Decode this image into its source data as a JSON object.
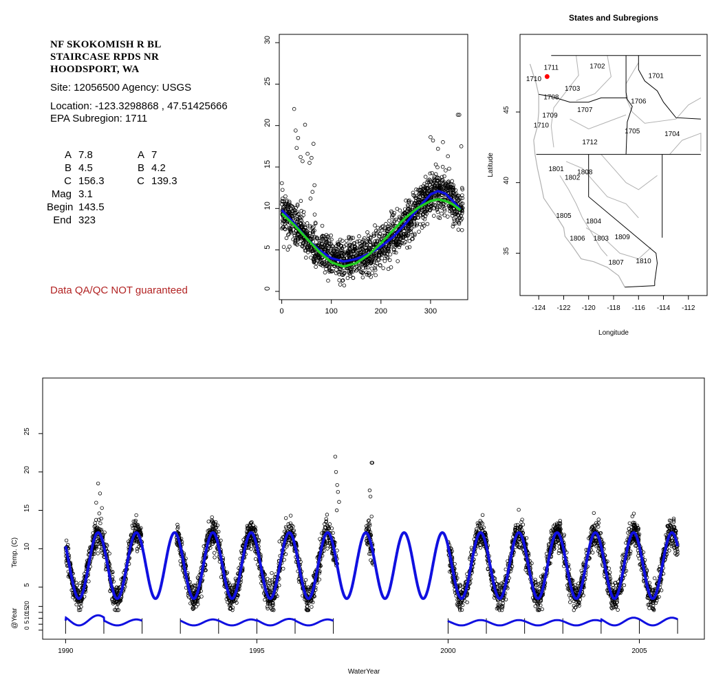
{
  "site": {
    "name_lines": "NF SKOKOMISH R BL\nSTAIRCASE RPDS NR\nHOODSPORT, WA",
    "site_line": "Site: 12056500     Agency: USGS",
    "location_line": "Location: -123.3298868 , 47.51425666",
    "subregion_line": "EPA Subregion: 1711",
    "qa_note": "Data QA/QC NOT guaranteed"
  },
  "params_left": [
    {
      "label": "A",
      "value": "7.8"
    },
    {
      "label": "B",
      "value": "4.5"
    },
    {
      "label": "C",
      "value": "156.3"
    },
    {
      "label": "Mag",
      "value": "3.1"
    },
    {
      "label": "Begin",
      "value": "143.5"
    },
    {
      "label": "End",
      "value": "323"
    }
  ],
  "params_right": [
    {
      "label": "A",
      "value": "7"
    },
    {
      "label": "B",
      "value": "4.2"
    },
    {
      "label": "C",
      "value": "139.3"
    }
  ],
  "colors": {
    "blue_fit": "#1010e0",
    "green_fit": "#22cc22",
    "points": "#000000",
    "site_marker": "#ff0000",
    "qa_text": "#b22222",
    "region_lines": "#b0b0b0"
  },
  "chart_data": [
    {
      "type": "scatter",
      "title": "",
      "xlabel": "",
      "ylabel": "",
      "xlim": [
        -5,
        375
      ],
      "ylim": [
        -1,
        31
      ],
      "x_ticks": [
        "0",
        "100",
        "200",
        "300"
      ],
      "y_ticks": [
        "0",
        "5",
        "10",
        "15",
        "20",
        "25",
        "30"
      ],
      "fit_curves": [
        {
          "color": "blue",
          "x": [
            0,
            25,
            50,
            75,
            100,
            125,
            150,
            175,
            200,
            225,
            250,
            275,
            300,
            315,
            330,
            345,
            360
          ],
          "y": [
            9.8,
            8.2,
            6.4,
            5.0,
            4.0,
            3.6,
            3.9,
            4.5,
            5.4,
            6.6,
            8.2,
            10.0,
            11.7,
            12.1,
            11.8,
            10.9,
            9.9
          ]
        },
        {
          "color": "green",
          "x": [
            0,
            25,
            50,
            75,
            100,
            125,
            150,
            175,
            200,
            225,
            250,
            275,
            300,
            315,
            330,
            345,
            360
          ],
          "y": [
            9.4,
            8.0,
            6.4,
            4.8,
            3.5,
            3.0,
            3.4,
            4.4,
            5.8,
            7.4,
            8.9,
            10.1,
            10.9,
            11.1,
            10.9,
            10.5,
            9.8
          ]
        }
      ],
      "point_cloud": {
        "count": 1700,
        "center_curve": "blue",
        "spread": 1.2,
        "outliers": [
          {
            "x": 25,
            "y": 22.0
          },
          {
            "x": 28,
            "y": 19.4
          },
          {
            "x": 30,
            "y": 17.3
          },
          {
            "x": 33,
            "y": 18.5
          },
          {
            "x": 38,
            "y": 16.2
          },
          {
            "x": 42,
            "y": 15.7
          },
          {
            "x": 47,
            "y": 20.1
          },
          {
            "x": 52,
            "y": 16.6
          },
          {
            "x": 56,
            "y": 15.5
          },
          {
            "x": 60,
            "y": 16.1
          },
          {
            "x": 64,
            "y": 17.8
          },
          {
            "x": 66,
            "y": 12.8
          },
          {
            "x": 58,
            "y": 11.2
          },
          {
            "x": 62,
            "y": 12.0
          },
          {
            "x": 355,
            "y": 21.3
          },
          {
            "x": 358,
            "y": 21.3
          },
          {
            "x": 362,
            "y": 17.5
          },
          {
            "x": 300,
            "y": 18.6
          },
          {
            "x": 305,
            "y": 18.2
          },
          {
            "x": 325,
            "y": 18.0
          },
          {
            "x": 315,
            "y": 17.2
          },
          {
            "x": 335,
            "y": 16.3
          }
        ]
      }
    },
    {
      "type": "map",
      "title": "States and Subregions",
      "xlabel": "Longitude",
      "ylabel": "Latitude",
      "xlim": [
        -125.5,
        -110.5
      ],
      "ylim": [
        32,
        50.5
      ],
      "x_ticks": [
        "-124",
        "-122",
        "-120",
        "-118",
        "-116",
        "-114",
        "-112"
      ],
      "y_ticks": [
        "35",
        "40",
        "45"
      ],
      "site_marker": {
        "lon": -123.33,
        "lat": 47.51
      },
      "region_labels": [
        {
          "id": "1711",
          "lon": -123.0,
          "lat": 48.0
        },
        {
          "id": "1710",
          "lon": -124.4,
          "lat": 47.2
        },
        {
          "id": "1702",
          "lon": -119.3,
          "lat": 48.1
        },
        {
          "id": "1701",
          "lon": -114.6,
          "lat": 47.4
        },
        {
          "id": "1703",
          "lon": -121.3,
          "lat": 46.5
        },
        {
          "id": "1708",
          "lon": -123.0,
          "lat": 45.9
        },
        {
          "id": "1706",
          "lon": -116.0,
          "lat": 45.6
        },
        {
          "id": "1707",
          "lon": -120.3,
          "lat": 45.0
        },
        {
          "id": "1709",
          "lon": -123.1,
          "lat": 44.6
        },
        {
          "id": "1710",
          "lon": -123.8,
          "lat": 43.9
        },
        {
          "id": "1705",
          "lon": -116.5,
          "lat": 43.5
        },
        {
          "id": "1704",
          "lon": -113.3,
          "lat": 43.3
        },
        {
          "id": "1712",
          "lon": -119.9,
          "lat": 42.7
        },
        {
          "id": "1801",
          "lon": -122.6,
          "lat": 40.8
        },
        {
          "id": "1802",
          "lon": -121.3,
          "lat": 40.2
        },
        {
          "id": "1808",
          "lon": -120.3,
          "lat": 40.6
        },
        {
          "id": "1805",
          "lon": -122.0,
          "lat": 37.5
        },
        {
          "id": "1804",
          "lon": -119.6,
          "lat": 37.1
        },
        {
          "id": "1806",
          "lon": -120.9,
          "lat": 35.9
        },
        {
          "id": "1803",
          "lon": -119.0,
          "lat": 35.9
        },
        {
          "id": "1809",
          "lon": -117.3,
          "lat": 36.0
        },
        {
          "id": "1807",
          "lon": -117.8,
          "lat": 34.2
        },
        {
          "id": "1810",
          "lon": -115.6,
          "lat": 34.3
        }
      ]
    },
    {
      "type": "scatter",
      "title": "",
      "xlabel": "",
      "ylabel": "Temp. (C)",
      "xlim": [
        1989.4,
        2006.7
      ],
      "ylim": [
        0,
        30
      ],
      "x_ticks": [],
      "y_ticks": [
        "5",
        "10",
        "15",
        "20",
        "25"
      ],
      "fit_period_years": 1,
      "fit_mean": 7.8,
      "fit_amp": 4.3,
      "fit_peak_phase": 0.85,
      "fit_range": [
        1990,
        2006
      ],
      "data_years": [
        [
          1990.0,
          1992.0
        ],
        [
          1992.9,
          1997.1
        ],
        [
          1997.85,
          1998.05
        ],
        [
          2000.0,
          2006.0
        ]
      ],
      "outliers": [
        {
          "x": 1990.85,
          "y": 18.5
        },
        {
          "x": 1990.9,
          "y": 17.2
        },
        {
          "x": 1990.8,
          "y": 16.0
        },
        {
          "x": 1990.95,
          "y": 15.3
        },
        {
          "x": 1990.88,
          "y": 14.6
        },
        {
          "x": 1997.05,
          "y": 22.0
        },
        {
          "x": 1997.07,
          "y": 20.0
        },
        {
          "x": 1997.1,
          "y": 18.3
        },
        {
          "x": 1997.12,
          "y": 17.4
        },
        {
          "x": 1997.15,
          "y": 16.1
        },
        {
          "x": 1997.09,
          "y": 15.0
        },
        {
          "x": 1998.0,
          "y": 21.2
        },
        {
          "x": 1998.02,
          "y": 21.2
        },
        {
          "x": 1997.95,
          "y": 17.6
        },
        {
          "x": 1997.97,
          "y": 16.8
        },
        {
          "x": 1998.0,
          "y": 14.2
        },
        {
          "x": 1997.93,
          "y": 13.7
        }
      ]
    },
    {
      "type": "line",
      "title": "",
      "xlabel": "WaterYear",
      "ylabel": "@Year",
      "xlim": [
        1989.4,
        2006.7
      ],
      "ylim": [
        -3,
        26
      ],
      "x_ticks": [
        "1990",
        "1995",
        "2000",
        "2005"
      ],
      "y_ticks": [
        "0",
        "5",
        "10",
        "15",
        "20"
      ],
      "segments": [
        [
          1990,
          1992
        ],
        [
          1993,
          1997
        ],
        [
          2000,
          2006
        ]
      ],
      "year_peaks": {
        "1991": 14.5,
        "1992": 11.0,
        "1994": 11.0,
        "1995": 11.0,
        "1996": 11.5,
        "1997": 11.0,
        "2001": 10.5,
        "2002": 10.5,
        "2003": 10.5,
        "2004": 10.5,
        "2005": 12.5,
        "2006": 12.5
      }
    }
  ]
}
